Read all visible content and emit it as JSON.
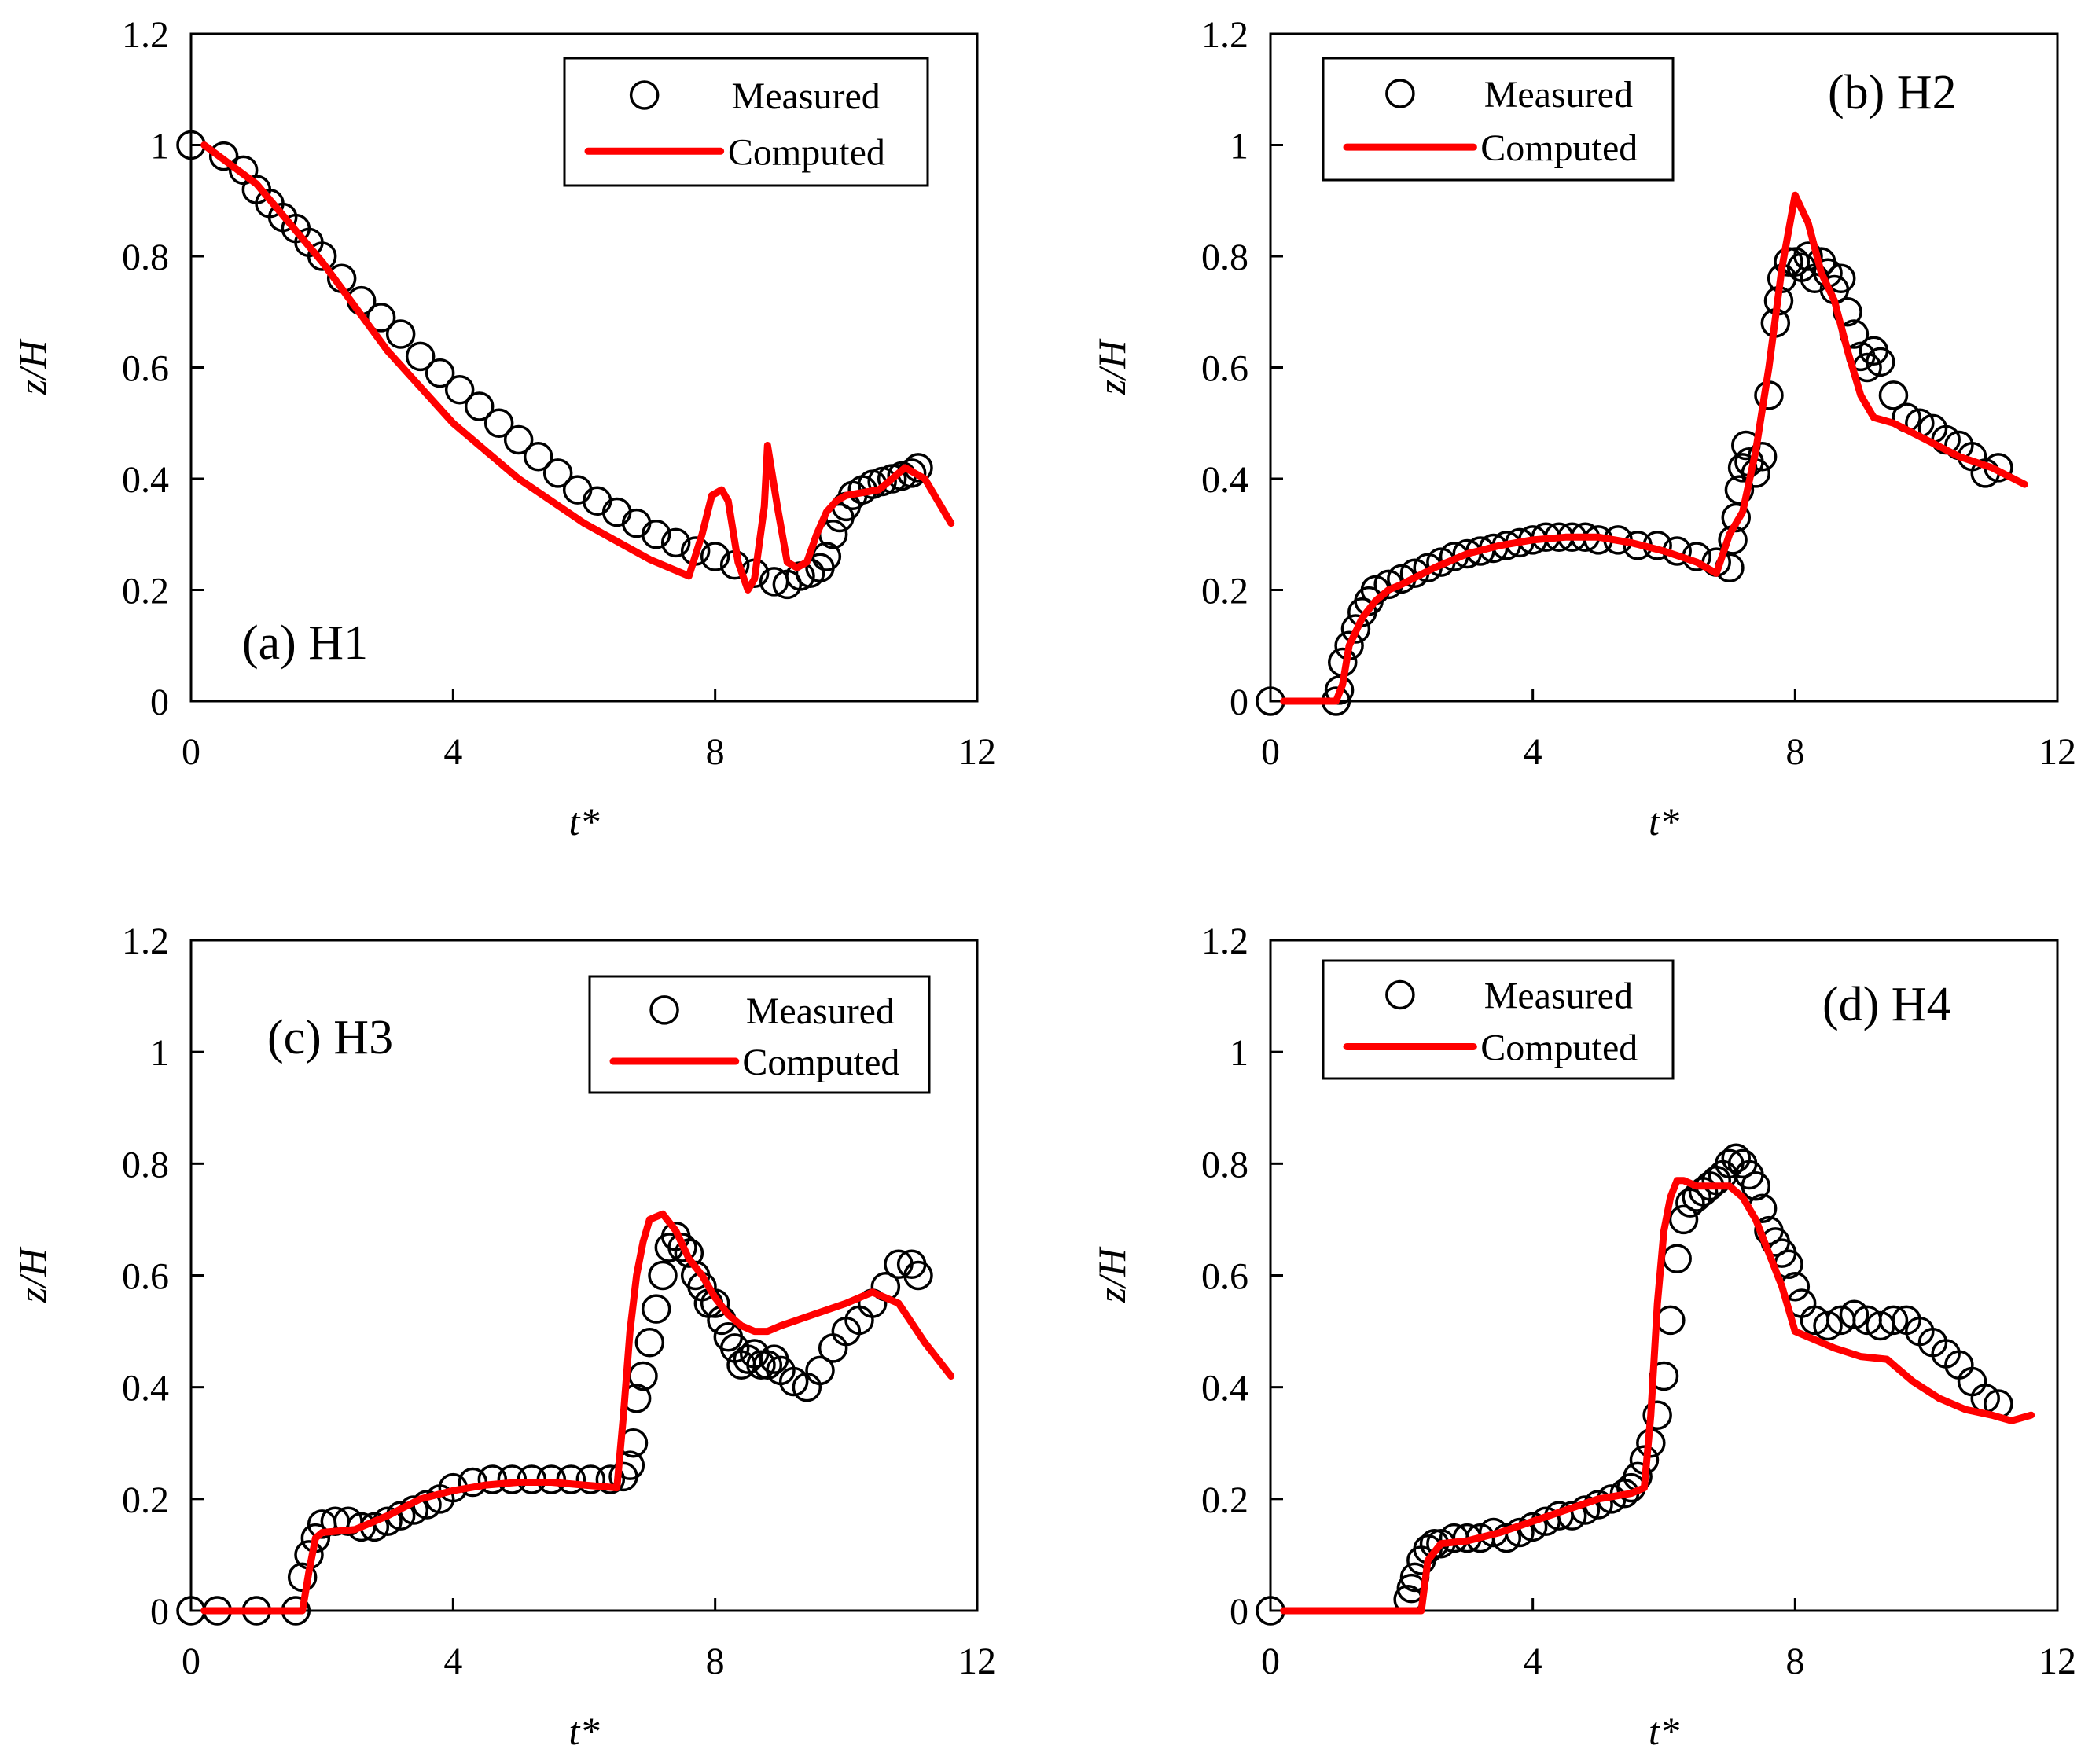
{
  "colors": {
    "measured": "#000000",
    "computed": "#ff0000",
    "axis": "#000000",
    "background": "#ffffff"
  },
  "icons": {
    "measured_marker": "open-circle-marker-icon",
    "computed_line": "red-line-legend-icon"
  },
  "chart_data": [
    {
      "type": "scatter",
      "title": "(a) H1",
      "xlabel": "t*",
      "ylabel": "z/H",
      "xlim": [
        0,
        12
      ],
      "ylim": [
        0,
        1.2
      ],
      "xticks": [
        "0",
        "4",
        "8",
        "12"
      ],
      "yticks": [
        "0",
        "0.2",
        "0.4",
        "0.6",
        "0.8",
        "1",
        "1.2"
      ],
      "grid": false,
      "legend_position": "top-right",
      "series": [
        {
          "name": "Measured",
          "style": "markers",
          "x": [
            0.0,
            0.5,
            0.8,
            1.0,
            1.2,
            1.4,
            1.6,
            1.8,
            2.0,
            2.3,
            2.6,
            2.9,
            3.2,
            3.5,
            3.8,
            4.1,
            4.4,
            4.7,
            5.0,
            5.3,
            5.6,
            5.9,
            6.2,
            6.5,
            6.8,
            7.1,
            7.4,
            7.7,
            8.0,
            8.3,
            8.6,
            8.9,
            9.1,
            9.3,
            9.45,
            9.6,
            9.7,
            9.8,
            9.9,
            10.0,
            10.1,
            10.25,
            10.4,
            10.55,
            10.7,
            10.85,
            11.0,
            11.1
          ],
          "y": [
            1.0,
            0.98,
            0.955,
            0.92,
            0.895,
            0.87,
            0.85,
            0.825,
            0.8,
            0.76,
            0.72,
            0.69,
            0.66,
            0.62,
            0.59,
            0.56,
            0.53,
            0.5,
            0.47,
            0.44,
            0.41,
            0.38,
            0.36,
            0.34,
            0.32,
            0.3,
            0.285,
            0.27,
            0.26,
            0.245,
            0.23,
            0.215,
            0.21,
            0.225,
            0.23,
            0.24,
            0.26,
            0.3,
            0.33,
            0.35,
            0.37,
            0.38,
            0.39,
            0.395,
            0.4,
            0.405,
            0.41,
            0.42
          ]
        },
        {
          "name": "Computed",
          "style": "line",
          "x": [
            0.2,
            1.0,
            2.0,
            3.0,
            4.0,
            5.0,
            6.0,
            7.0,
            7.6,
            7.8,
            7.95,
            8.1,
            8.2,
            8.35,
            8.5,
            8.6,
            8.75,
            8.8,
            8.95,
            9.1,
            9.25,
            9.4,
            9.55,
            9.7,
            9.85,
            10.0,
            10.5,
            10.9,
            11.2,
            11.6
          ],
          "y": [
            1.0,
            0.93,
            0.79,
            0.63,
            0.5,
            0.4,
            0.32,
            0.255,
            0.225,
            0.3,
            0.37,
            0.38,
            0.36,
            0.25,
            0.2,
            0.22,
            0.35,
            0.46,
            0.35,
            0.25,
            0.24,
            0.25,
            0.3,
            0.34,
            0.36,
            0.37,
            0.38,
            0.42,
            0.4,
            0.32
          ]
        }
      ]
    },
    {
      "type": "scatter",
      "title": "(b) H2",
      "xlabel": "t*",
      "ylabel": "z/H",
      "xlim": [
        0,
        12
      ],
      "ylim": [
        0,
        1.2
      ],
      "xticks": [
        "0",
        "4",
        "8",
        "12"
      ],
      "yticks": [
        "0",
        "0.2",
        "0.4",
        "0.6",
        "0.8",
        "1",
        "1.2"
      ],
      "grid": false,
      "legend_position": "top-left",
      "series": [
        {
          "name": "Measured",
          "style": "markers",
          "x": [
            0.0,
            1.0,
            1.05,
            1.1,
            1.2,
            1.3,
            1.4,
            1.5,
            1.6,
            1.8,
            2.0,
            2.2,
            2.4,
            2.6,
            2.8,
            3.0,
            3.2,
            3.4,
            3.6,
            3.8,
            4.0,
            4.2,
            4.4,
            4.6,
            4.8,
            5.0,
            5.3,
            5.6,
            5.9,
            6.2,
            6.5,
            6.8,
            7.0,
            7.05,
            7.1,
            7.15,
            7.2,
            7.25,
            7.3,
            7.4,
            7.5,
            7.6,
            7.7,
            7.75,
            7.8,
            7.9,
            8.0,
            8.1,
            8.2,
            8.3,
            8.4,
            8.5,
            8.6,
            8.7,
            8.8,
            8.9,
            9.0,
            9.1,
            9.2,
            9.3,
            9.5,
            9.7,
            9.9,
            10.1,
            10.3,
            10.5,
            10.7,
            10.9,
            11.1
          ],
          "y": [
            0.0,
            0.0,
            0.02,
            0.07,
            0.1,
            0.13,
            0.16,
            0.18,
            0.2,
            0.21,
            0.22,
            0.23,
            0.24,
            0.25,
            0.26,
            0.265,
            0.27,
            0.275,
            0.28,
            0.285,
            0.29,
            0.295,
            0.295,
            0.295,
            0.295,
            0.29,
            0.29,
            0.28,
            0.28,
            0.27,
            0.26,
            0.25,
            0.24,
            0.29,
            0.33,
            0.38,
            0.42,
            0.46,
            0.43,
            0.41,
            0.44,
            0.55,
            0.68,
            0.72,
            0.76,
            0.79,
            0.79,
            0.78,
            0.8,
            0.76,
            0.79,
            0.77,
            0.74,
            0.76,
            0.7,
            0.66,
            0.62,
            0.6,
            0.63,
            0.61,
            0.55,
            0.51,
            0.5,
            0.49,
            0.47,
            0.46,
            0.44,
            0.41,
            0.42
          ]
        },
        {
          "name": "Computed",
          "style": "line",
          "x": [
            0.2,
            1.0,
            1.1,
            1.2,
            1.4,
            1.6,
            1.8,
            2.0,
            2.5,
            3.0,
            3.5,
            4.0,
            4.5,
            5.0,
            5.5,
            6.0,
            6.5,
            6.8,
            7.0,
            7.2,
            7.4,
            7.6,
            7.8,
            8.0,
            8.2,
            8.4,
            8.6,
            8.8,
            9.0,
            9.2,
            9.5,
            10.0,
            10.5,
            11.0,
            11.5
          ],
          "y": [
            0.0,
            0.0,
            0.03,
            0.1,
            0.15,
            0.18,
            0.2,
            0.21,
            0.24,
            0.265,
            0.28,
            0.29,
            0.295,
            0.295,
            0.285,
            0.27,
            0.25,
            0.23,
            0.3,
            0.34,
            0.45,
            0.6,
            0.78,
            0.91,
            0.86,
            0.77,
            0.72,
            0.63,
            0.55,
            0.51,
            0.5,
            0.47,
            0.44,
            0.42,
            0.39
          ]
        }
      ]
    },
    {
      "type": "scatter",
      "title": "(c) H3",
      "xlabel": "t*",
      "ylabel": "z/H",
      "xlim": [
        0,
        12
      ],
      "ylim": [
        0,
        1.2
      ],
      "xticks": [
        "0",
        "4",
        "8",
        "12"
      ],
      "yticks": [
        "0",
        "0.2",
        "0.4",
        "0.6",
        "0.8",
        "1",
        "1.2"
      ],
      "grid": false,
      "legend_position": "top-right",
      "series": [
        {
          "name": "Measured",
          "style": "markers",
          "x": [
            0.0,
            0.4,
            1.0,
            1.6,
            1.7,
            1.8,
            1.9,
            2.0,
            2.2,
            2.4,
            2.6,
            2.8,
            3.0,
            3.2,
            3.4,
            3.6,
            3.8,
            4.0,
            4.3,
            4.6,
            4.9,
            5.2,
            5.5,
            5.8,
            6.1,
            6.4,
            6.6,
            6.7,
            6.75,
            6.8,
            6.9,
            7.0,
            7.1,
            7.2,
            7.3,
            7.4,
            7.5,
            7.6,
            7.7,
            7.8,
            7.9,
            8.0,
            8.1,
            8.2,
            8.3,
            8.4,
            8.5,
            8.6,
            8.7,
            8.8,
            8.9,
            9.0,
            9.2,
            9.4,
            9.6,
            9.8,
            10.0,
            10.2,
            10.4,
            10.6,
            10.8,
            11.0,
            11.1
          ],
          "y": [
            0.0,
            0.0,
            0.0,
            0.0,
            0.06,
            0.1,
            0.13,
            0.155,
            0.16,
            0.16,
            0.15,
            0.15,
            0.16,
            0.17,
            0.18,
            0.19,
            0.2,
            0.22,
            0.23,
            0.235,
            0.235,
            0.235,
            0.235,
            0.235,
            0.235,
            0.235,
            0.24,
            0.26,
            0.3,
            0.38,
            0.42,
            0.48,
            0.54,
            0.6,
            0.65,
            0.67,
            0.65,
            0.64,
            0.6,
            0.58,
            0.55,
            0.55,
            0.52,
            0.49,
            0.47,
            0.44,
            0.45,
            0.46,
            0.44,
            0.44,
            0.45,
            0.43,
            0.41,
            0.4,
            0.43,
            0.47,
            0.5,
            0.52,
            0.55,
            0.58,
            0.62,
            0.62,
            0.6
          ]
        },
        {
          "name": "Computed",
          "style": "line",
          "x": [
            0.2,
            1.0,
            1.7,
            1.8,
            1.9,
            2.0,
            2.5,
            3.0,
            3.5,
            4.0,
            4.5,
            5.0,
            5.5,
            6.0,
            6.5,
            6.6,
            6.7,
            6.8,
            6.9,
            7.0,
            7.2,
            7.4,
            7.6,
            7.8,
            8.0,
            8.2,
            8.4,
            8.6,
            8.8,
            9.0,
            9.5,
            10.0,
            10.4,
            10.8,
            11.2,
            11.6
          ],
          "y": [
            0.0,
            0.0,
            0.0,
            0.07,
            0.13,
            0.14,
            0.145,
            0.17,
            0.2,
            0.215,
            0.225,
            0.23,
            0.23,
            0.225,
            0.22,
            0.35,
            0.5,
            0.6,
            0.66,
            0.7,
            0.71,
            0.68,
            0.63,
            0.6,
            0.56,
            0.53,
            0.51,
            0.5,
            0.5,
            0.51,
            0.53,
            0.55,
            0.57,
            0.55,
            0.48,
            0.42
          ]
        }
      ]
    },
    {
      "type": "scatter",
      "title": "(d) H4",
      "xlabel": "t*",
      "ylabel": "z/H",
      "xlim": [
        0,
        12
      ],
      "ylim": [
        0,
        1.2
      ],
      "xticks": [
        "0",
        "4",
        "8",
        "12"
      ],
      "yticks": [
        "0",
        "0.2",
        "0.4",
        "0.6",
        "0.8",
        "1",
        "1.2"
      ],
      "grid": false,
      "legend_position": "top-left",
      "series": [
        {
          "name": "Measured",
          "style": "markers",
          "x": [
            0.0,
            2.1,
            2.15,
            2.2,
            2.3,
            2.4,
            2.5,
            2.6,
            2.8,
            3.0,
            3.2,
            3.4,
            3.6,
            3.8,
            4.0,
            4.2,
            4.4,
            4.6,
            4.8,
            5.0,
            5.2,
            5.4,
            5.5,
            5.6,
            5.7,
            5.8,
            5.9,
            6.0,
            6.1,
            6.2,
            6.3,
            6.4,
            6.5,
            6.6,
            6.7,
            6.8,
            6.9,
            7.0,
            7.1,
            7.2,
            7.3,
            7.4,
            7.5,
            7.6,
            7.7,
            7.8,
            7.9,
            8.0,
            8.1,
            8.3,
            8.5,
            8.7,
            8.9,
            9.1,
            9.3,
            9.5,
            9.7,
            9.9,
            10.1,
            10.3,
            10.5,
            10.7,
            10.9,
            11.1
          ],
          "y": [
            0.0,
            0.02,
            0.04,
            0.06,
            0.09,
            0.11,
            0.12,
            0.12,
            0.13,
            0.13,
            0.13,
            0.14,
            0.13,
            0.14,
            0.15,
            0.16,
            0.17,
            0.17,
            0.18,
            0.19,
            0.2,
            0.21,
            0.22,
            0.24,
            0.27,
            0.3,
            0.35,
            0.42,
            0.52,
            0.63,
            0.7,
            0.73,
            0.74,
            0.75,
            0.76,
            0.77,
            0.78,
            0.8,
            0.81,
            0.8,
            0.78,
            0.76,
            0.72,
            0.68,
            0.66,
            0.64,
            0.62,
            0.58,
            0.55,
            0.52,
            0.51,
            0.52,
            0.53,
            0.52,
            0.51,
            0.52,
            0.52,
            0.5,
            0.48,
            0.46,
            0.44,
            0.41,
            0.38,
            0.37
          ]
        },
        {
          "name": "Computed",
          "style": "line",
          "x": [
            0.2,
            1.0,
            2.0,
            2.3,
            2.4,
            2.6,
            3.0,
            3.5,
            4.0,
            4.5,
            5.0,
            5.5,
            5.7,
            5.8,
            5.9,
            6.0,
            6.1,
            6.2,
            6.3,
            6.5,
            7.0,
            7.2,
            7.4,
            7.6,
            7.8,
            8.0,
            8.2,
            8.6,
            9.0,
            9.4,
            9.8,
            10.2,
            10.6,
            11.0,
            11.3,
            11.6
          ],
          "y": [
            0.0,
            0.0,
            0.0,
            0.0,
            0.09,
            0.12,
            0.125,
            0.14,
            0.16,
            0.18,
            0.2,
            0.21,
            0.22,
            0.35,
            0.55,
            0.68,
            0.74,
            0.77,
            0.77,
            0.76,
            0.76,
            0.74,
            0.7,
            0.64,
            0.58,
            0.5,
            0.49,
            0.47,
            0.455,
            0.45,
            0.41,
            0.38,
            0.36,
            0.35,
            0.34,
            0.35
          ]
        }
      ]
    }
  ]
}
